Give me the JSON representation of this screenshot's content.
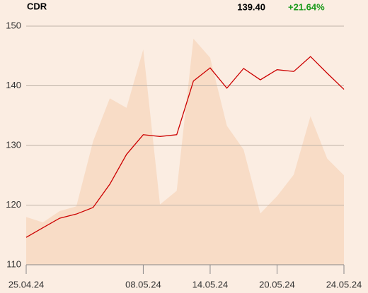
{
  "chart_data": {
    "type": "line",
    "title": "CDR",
    "last_price": "139.40",
    "change": "+21.64%",
    "change_color": "#1a9a1a",
    "categories": [
      "25.04.24",
      null,
      null,
      null,
      null,
      null,
      null,
      "08.05.24",
      null,
      null,
      null,
      "14.05.24",
      null,
      null,
      null,
      "20.05.24",
      null,
      null,
      null,
      "24.05.24"
    ],
    "series": [
      {
        "kind": "area",
        "color": "#f8dcc6",
        "values": [
          118.0,
          117.1,
          119.0,
          119.8,
          130.7,
          137.9,
          136.3,
          146.1,
          120.1,
          122.4,
          147.9,
          144.7,
          133.3,
          129.3,
          118.6,
          121.5,
          125.1,
          134.9,
          127.8,
          125.0
        ]
      },
      {
        "kind": "line",
        "color": "#cc0000",
        "values": [
          114.6,
          116.2,
          117.8,
          118.5,
          119.6,
          123.5,
          128.5,
          131.8,
          131.5,
          131.8,
          140.8,
          143.0,
          139.6,
          142.9,
          141.0,
          142.7,
          142.4,
          144.9,
          142.1,
          139.4
        ]
      }
    ],
    "ylim": [
      110,
      150
    ],
    "yticks": [
      110,
      120,
      130,
      140,
      150
    ],
    "grid": true
  }
}
